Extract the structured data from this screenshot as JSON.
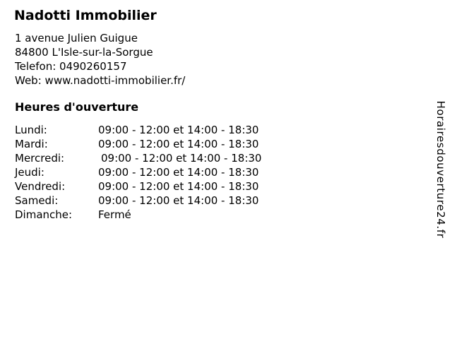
{
  "page": {
    "business": {
      "name": "Nadotti Immobilier",
      "address_line1": "1 avenue Julien Guigue",
      "address_line2": "84800 L'Isle-sur-la-Sorgue",
      "phone_label": "Telefon:",
      "phone_value": "0490260157",
      "web_label": "Web:",
      "web_value": "www.nadotti-immobilier.fr/"
    },
    "opening_hours": {
      "heading": "Heures d'ouverture",
      "rows": [
        {
          "day": "Lundi:",
          "hours": "09:00 - 12:00 et 14:00 - 18:30"
        },
        {
          "day": "Mardi:",
          "hours": "09:00 - 12:00 et 14:00 - 18:30"
        },
        {
          "day": "Mercredi:",
          "hours": "09:00 - 12:00 et 14:00 - 18:30"
        },
        {
          "day": "Jeudi:",
          "hours": "09:00 - 12:00 et 14:00 - 18:30"
        },
        {
          "day": "Vendredi:",
          "hours": "09:00 - 12:00 et 14:00 - 18:30"
        },
        {
          "day": "Samedi:",
          "hours": "09:00 - 12:00 et 14:00 - 18:30"
        },
        {
          "day": "Dimanche:",
          "hours": "Fermé"
        }
      ]
    },
    "watermark": "Horairesdouverture24.fr",
    "colors": {
      "text": "#000000",
      "background": "#ffffff"
    }
  }
}
